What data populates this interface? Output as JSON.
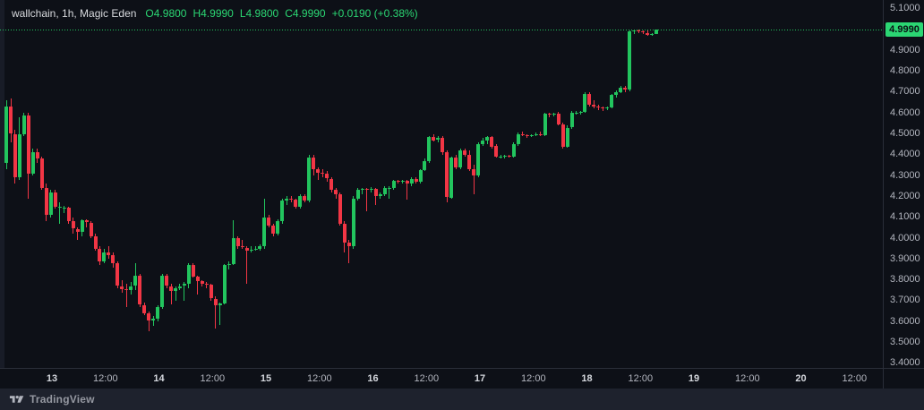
{
  "header": {
    "symbol_text": "wallchain, 1h, Magic Eden",
    "ohlc": {
      "o": "O4.9800",
      "h": "H4.9990",
      "l": "L4.9800",
      "c": "C4.9990"
    },
    "change": "+0.0190 (+0.38%)"
  },
  "footer": {
    "brand": "TradingView"
  },
  "chart_data": {
    "type": "candlestick",
    "title": "wallchain, 1h, Magic Eden",
    "symbol": "wallchain",
    "interval": "1h",
    "exchange": "Magic Eden",
    "last_price": 4.999,
    "last_price_label": "4.9990",
    "open": 4.98,
    "high": 4.999,
    "low": 4.98,
    "close": 4.999,
    "change_text": "+0.0190 (+0.38%)",
    "ylim": [
      3.38,
      5.14
    ],
    "grid": false,
    "legend_position": "top-left",
    "colors": {
      "up": "#22c55e",
      "down": "#f23645",
      "last_price_bg": "#2bd673",
      "background": "#0d1017",
      "axis_text": "#b2b5be"
    },
    "price_axis_ticks": [
      "5.1000",
      "4.9000",
      "4.8000",
      "4.7000",
      "4.6000",
      "4.5000",
      "4.4000",
      "4.3000",
      "4.2000",
      "4.1000",
      "4.0000",
      "3.9000",
      "3.8000",
      "3.7000",
      "3.6000",
      "3.5000",
      "3.4000"
    ],
    "time_axis_ticks": [
      {
        "label": "13",
        "major": true
      },
      {
        "label": "12:00",
        "major": false
      },
      {
        "label": "14",
        "major": true
      },
      {
        "label": "12:00",
        "major": false
      },
      {
        "label": "15",
        "major": true
      },
      {
        "label": "12:00",
        "major": false
      },
      {
        "label": "16",
        "major": true
      },
      {
        "label": "12:00",
        "major": false
      },
      {
        "label": "17",
        "major": true
      },
      {
        "label": "12:00",
        "major": false
      },
      {
        "label": "18",
        "major": true
      },
      {
        "label": "12:00",
        "major": false
      },
      {
        "label": "19",
        "major": true
      },
      {
        "label": "12:00",
        "major": false
      },
      {
        "label": "20",
        "major": true
      },
      {
        "label": "12:00",
        "major": false
      }
    ],
    "candles": [
      [
        4.36,
        4.66,
        4.33,
        4.63
      ],
      [
        4.63,
        4.67,
        4.46,
        4.5
      ],
      [
        4.5,
        4.52,
        4.26,
        4.29
      ],
      [
        4.29,
        4.58,
        4.28,
        4.5
      ],
      [
        4.5,
        4.6,
        4.49,
        4.59
      ],
      [
        4.59,
        4.6,
        4.19,
        4.31
      ],
      [
        4.31,
        4.43,
        4.3,
        4.41
      ],
      [
        4.41,
        4.43,
        4.36,
        4.38
      ],
      [
        4.38,
        4.39,
        4.23,
        4.24
      ],
      [
        4.24,
        4.26,
        4.08,
        4.11
      ],
      [
        4.11,
        4.23,
        4.1,
        4.22
      ],
      [
        4.22,
        4.23,
        4.14,
        4.15
      ],
      [
        4.15,
        4.17,
        4.07,
        4.15
      ],
      [
        4.145,
        4.155,
        4.12,
        4.145
      ],
      [
        4.145,
        4.15,
        4.07,
        4.08
      ],
      [
        4.08,
        4.1,
        4.02,
        4.045
      ],
      [
        4.045,
        4.05,
        3.99,
        4.03
      ],
      [
        4.03,
        4.09,
        4.01,
        4.085
      ],
      [
        4.085,
        4.09,
        4.05,
        4.075
      ],
      [
        4.075,
        4.08,
        4.0,
        4.01
      ],
      [
        4.01,
        4.02,
        3.94,
        3.95
      ],
      [
        3.95,
        3.96,
        3.87,
        3.89
      ],
      [
        3.89,
        3.95,
        3.88,
        3.93
      ],
      [
        3.93,
        3.96,
        3.9,
        3.92
      ],
      [
        3.92,
        3.93,
        3.86,
        3.88
      ],
      [
        3.88,
        3.89,
        3.76,
        3.77
      ],
      [
        3.77,
        3.8,
        3.74,
        3.755
      ],
      [
        3.755,
        3.78,
        3.67,
        3.75
      ],
      [
        3.75,
        3.79,
        3.73,
        3.77
      ],
      [
        3.77,
        3.88,
        3.75,
        3.82
      ],
      [
        3.82,
        3.83,
        3.67,
        3.68
      ],
      [
        3.68,
        3.69,
        3.63,
        3.64
      ],
      [
        3.64,
        3.65,
        3.555,
        3.605
      ],
      [
        3.605,
        3.625,
        3.58,
        3.615
      ],
      [
        3.615,
        3.68,
        3.6,
        3.67
      ],
      [
        3.67,
        3.83,
        3.66,
        3.82
      ],
      [
        3.82,
        3.83,
        3.76,
        3.77
      ],
      [
        3.77,
        3.78,
        3.68,
        3.745
      ],
      [
        3.745,
        3.77,
        3.7,
        3.76
      ],
      [
        3.76,
        3.78,
        3.75,
        3.77
      ],
      [
        3.77,
        3.79,
        3.7,
        3.78
      ],
      [
        3.78,
        3.88,
        3.76,
        3.87
      ],
      [
        3.87,
        3.88,
        3.81,
        3.815
      ],
      [
        3.815,
        3.82,
        3.73,
        3.795
      ],
      [
        3.795,
        3.8,
        3.77,
        3.78
      ],
      [
        3.78,
        3.79,
        3.76,
        3.775
      ],
      [
        3.775,
        3.78,
        3.7,
        3.71
      ],
      [
        3.71,
        3.72,
        3.565,
        3.68
      ],
      [
        3.68,
        3.69,
        3.585,
        3.685
      ],
      [
        3.685,
        3.875,
        3.68,
        3.87
      ],
      [
        3.87,
        3.89,
        3.85,
        3.875
      ],
      [
        3.875,
        4.085,
        3.87,
        4.0
      ],
      [
        4.0,
        4.01,
        3.95,
        3.96
      ],
      [
        3.96,
        3.99,
        3.95,
        3.955
      ],
      [
        3.955,
        3.96,
        3.78,
        3.94
      ],
      [
        3.94,
        3.96,
        3.93,
        3.945
      ],
      [
        3.945,
        3.96,
        3.94,
        3.95
      ],
      [
        3.95,
        3.97,
        3.94,
        3.96
      ],
      [
        3.96,
        4.19,
        3.95,
        4.1
      ],
      [
        4.1,
        4.11,
        4.05,
        4.06
      ],
      [
        4.06,
        4.07,
        4.01,
        4.02
      ],
      [
        4.02,
        4.09,
        4.015,
        4.08
      ],
      [
        4.08,
        4.19,
        4.07,
        4.18
      ],
      [
        4.18,
        4.2,
        4.16,
        4.19
      ],
      [
        4.19,
        4.2,
        4.17,
        4.185
      ],
      [
        4.185,
        4.19,
        4.14,
        4.15
      ],
      [
        4.15,
        4.21,
        4.14,
        4.2
      ],
      [
        4.2,
        4.21,
        4.17,
        4.18
      ],
      [
        4.18,
        4.4,
        4.17,
        4.385
      ],
      [
        4.385,
        4.4,
        4.3,
        4.33
      ],
      [
        4.33,
        4.34,
        4.28,
        4.315
      ],
      [
        4.315,
        4.33,
        4.29,
        4.31
      ],
      [
        4.31,
        4.32,
        4.27,
        4.285
      ],
      [
        4.285,
        4.29,
        4.22,
        4.23
      ],
      [
        4.23,
        4.24,
        4.19,
        4.21
      ],
      [
        4.21,
        4.22,
        4.06,
        4.07
      ],
      [
        4.07,
        4.08,
        3.93,
        3.98
      ],
      [
        3.98,
        3.99,
        3.88,
        3.96
      ],
      [
        3.96,
        4.2,
        3.95,
        4.19
      ],
      [
        4.19,
        4.24,
        4.18,
        4.23
      ],
      [
        4.23,
        4.24,
        4.21,
        4.235
      ],
      [
        4.235,
        4.24,
        4.13,
        4.23
      ],
      [
        4.23,
        4.245,
        4.22,
        4.235
      ],
      [
        4.235,
        4.24,
        4.16,
        4.2
      ],
      [
        4.2,
        4.22,
        4.19,
        4.21
      ],
      [
        4.21,
        4.25,
        4.2,
        4.24
      ],
      [
        4.24,
        4.25,
        4.19,
        4.24
      ],
      [
        4.24,
        4.28,
        4.23,
        4.275
      ],
      [
        4.275,
        4.28,
        4.26,
        4.27
      ],
      [
        4.27,
        4.28,
        4.26,
        4.275
      ],
      [
        4.275,
        4.28,
        4.185,
        4.26
      ],
      [
        4.26,
        4.29,
        4.25,
        4.285
      ],
      [
        4.285,
        4.29,
        4.26,
        4.27
      ],
      [
        4.27,
        4.33,
        4.26,
        4.325
      ],
      [
        4.325,
        4.38,
        4.32,
        4.37
      ],
      [
        4.37,
        4.49,
        4.36,
        4.485
      ],
      [
        4.485,
        4.5,
        4.465,
        4.47
      ],
      [
        4.47,
        4.49,
        4.46,
        4.48
      ],
      [
        4.48,
        4.49,
        4.4,
        4.41
      ],
      [
        4.41,
        4.42,
        4.17,
        4.195
      ],
      [
        4.195,
        4.39,
        4.19,
        4.385
      ],
      [
        4.385,
        4.4,
        4.33,
        4.34
      ],
      [
        4.34,
        4.43,
        4.33,
        4.42
      ],
      [
        4.42,
        4.43,
        4.39,
        4.4
      ],
      [
        4.4,
        4.42,
        4.32,
        4.33
      ],
      [
        4.33,
        4.35,
        4.21,
        4.3
      ],
      [
        4.3,
        4.46,
        4.29,
        4.45
      ],
      [
        4.45,
        4.48,
        4.44,
        4.47
      ],
      [
        4.47,
        4.49,
        4.45,
        4.485
      ],
      [
        4.485,
        4.49,
        4.43,
        4.44
      ],
      [
        4.44,
        4.45,
        4.385,
        4.39
      ],
      [
        4.39,
        4.4,
        4.38,
        4.39
      ],
      [
        4.39,
        4.4,
        4.38,
        4.395
      ],
      [
        4.395,
        4.4,
        4.385,
        4.39
      ],
      [
        4.39,
        4.46,
        4.385,
        4.45
      ],
      [
        4.45,
        4.505,
        4.44,
        4.5
      ],
      [
        4.5,
        4.51,
        4.49,
        4.495
      ],
      [
        4.495,
        4.5,
        4.48,
        4.49
      ],
      [
        4.49,
        4.5,
        4.485,
        4.495
      ],
      [
        4.495,
        4.505,
        4.49,
        4.5
      ],
      [
        4.5,
        4.51,
        4.49,
        4.495
      ],
      [
        4.495,
        4.6,
        4.49,
        4.595
      ],
      [
        4.595,
        4.6,
        4.58,
        4.59
      ],
      [
        4.59,
        4.6,
        4.585,
        4.595
      ],
      [
        4.595,
        4.605,
        4.54,
        4.545
      ],
      [
        4.545,
        4.555,
        4.43,
        4.44
      ],
      [
        4.44,
        4.54,
        4.435,
        4.53
      ],
      [
        4.53,
        4.61,
        4.525,
        4.6
      ],
      [
        4.6,
        4.61,
        4.59,
        4.6
      ],
      [
        4.6,
        4.61,
        4.59,
        4.605
      ],
      [
        4.605,
        4.7,
        4.6,
        4.69
      ],
      [
        4.69,
        4.7,
        4.63,
        4.64
      ],
      [
        4.64,
        4.66,
        4.62,
        4.63
      ],
      [
        4.63,
        4.64,
        4.615,
        4.625
      ],
      [
        4.625,
        4.63,
        4.61,
        4.62
      ],
      [
        4.62,
        4.63,
        4.615,
        4.625
      ],
      [
        4.625,
        4.69,
        4.62,
        4.685
      ],
      [
        4.685,
        4.71,
        4.675,
        4.7
      ],
      [
        4.7,
        4.73,
        4.695,
        4.72
      ],
      [
        4.72,
        4.73,
        4.7,
        4.71
      ],
      [
        4.71,
        4.995,
        4.705,
        4.99
      ],
      [
        4.99,
        5.0,
        4.98,
        4.997
      ],
      [
        4.997,
        5.0,
        4.985,
        4.99
      ],
      [
        4.99,
        4.995,
        4.98,
        4.985
      ],
      [
        4.985,
        4.995,
        4.97,
        4.975
      ],
      [
        4.975,
        4.985,
        4.97,
        4.98
      ],
      [
        4.98,
        4.999,
        4.98,
        4.999
      ]
    ]
  }
}
